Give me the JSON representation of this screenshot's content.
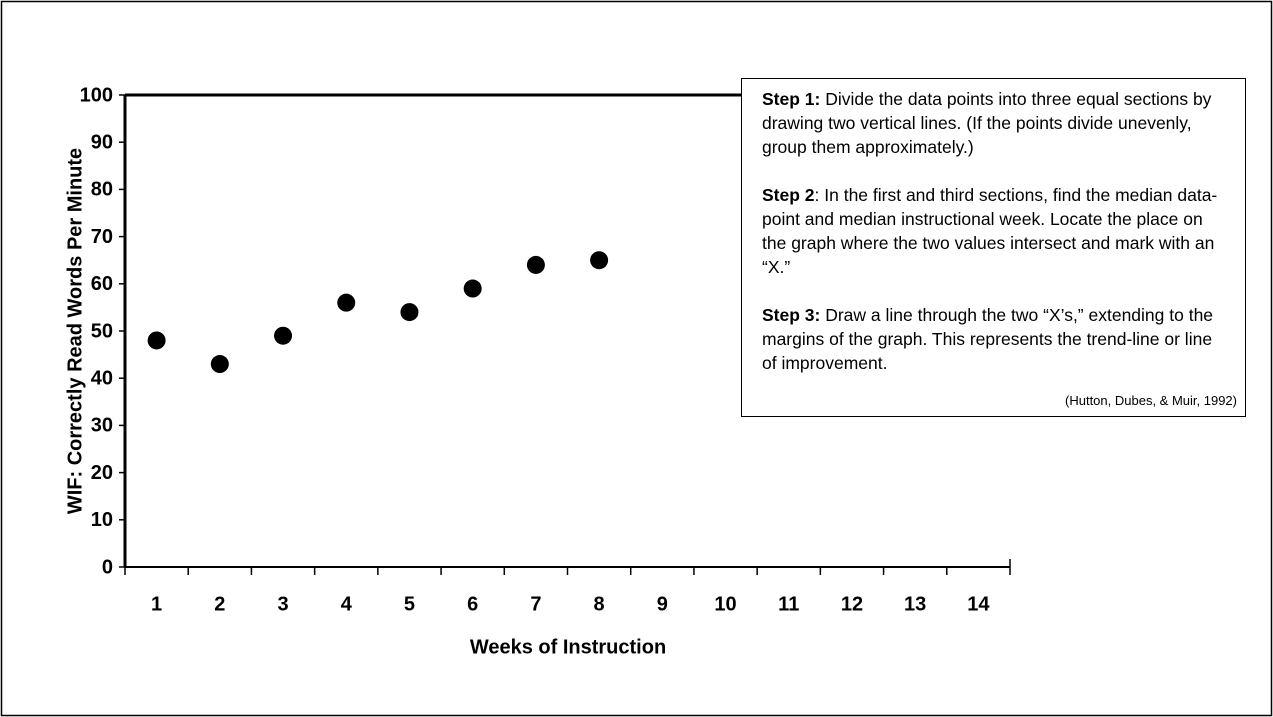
{
  "chart_data": {
    "type": "scatter",
    "xlabel": "Weeks of Instruction",
    "ylabel": "WIF: Correctly Read Words Per Minute",
    "categories": [
      "1",
      "2",
      "3",
      "4",
      "5",
      "6",
      "7",
      "8",
      "9",
      "10",
      "11",
      "12",
      "13",
      "14"
    ],
    "values": [
      48,
      43,
      49,
      56,
      54,
      59,
      64,
      65,
      null,
      null,
      null,
      null,
      null,
      null
    ],
    "color": "#000000",
    "ylim": [
      0,
      100
    ],
    "yticks": [
      0,
      10,
      20,
      30,
      40,
      50,
      60,
      70,
      80,
      90,
      100
    ],
    "grid": false
  },
  "annotation": {
    "steps": [
      {
        "label": "Step 1:",
        "text": " Divide the data points into three equal sections by drawing two vertical lines. (If the points divide unevenly, group them approximately.)"
      },
      {
        "label": "Step 2",
        "text": ": In the first and third sections, find the median data-point and median instructional week. Locate the place on the graph where the two values intersect and mark with an “X.”"
      },
      {
        "label": "Step 3:",
        "text": " Draw a line through the two “X’s,” extending to the margins of the graph. This represents the trend-line or line of improvement."
      }
    ],
    "citation": "(Hutton, Dubes, & Muir, 1992)"
  }
}
